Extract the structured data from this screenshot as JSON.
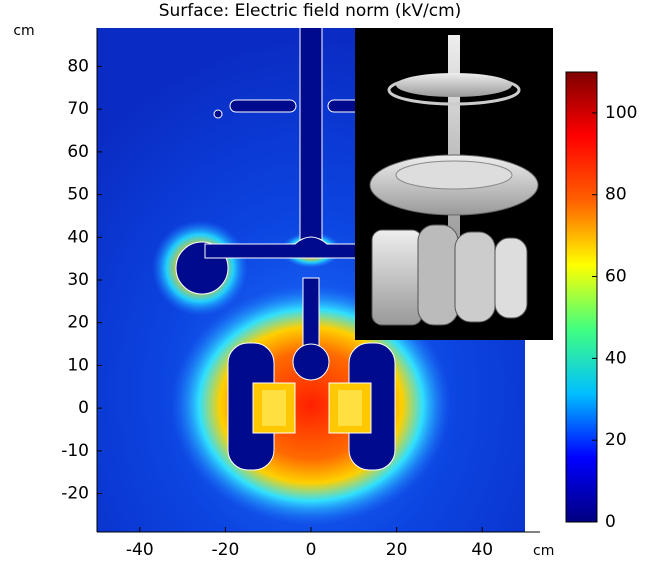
{
  "chart_data": {
    "type": "surface",
    "title": "Surface: Electric field norm (kV/cm)",
    "x_label": "cm",
    "y_label": "cm",
    "xlim": [
      -50,
      50
    ],
    "xticks": [
      -40,
      -20,
      0,
      20,
      40
    ],
    "ylim": [
      -29,
      89
    ],
    "yticks": [
      -20,
      -10,
      0,
      10,
      20,
      30,
      40,
      50,
      60,
      70,
      80
    ],
    "colorbar": {
      "clim": [
        0,
        110
      ],
      "ticks": [
        0,
        20,
        40,
        60,
        80,
        100
      ],
      "colors": [
        "#00007f",
        "#0000ff",
        "#00bfff",
        "#40ff80",
        "#ffff00",
        "#ff6000",
        "#ff0000",
        "#7f0000"
      ]
    }
  }
}
